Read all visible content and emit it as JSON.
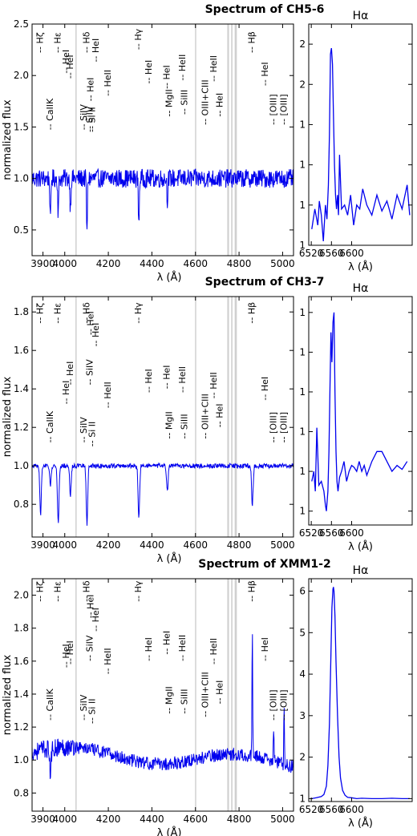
{
  "chart_data": [
    {
      "type": "line",
      "title": "Spectrum of CH5-6",
      "xlabel": "λ (Å)",
      "ylabel": "normalized flux",
      "xlim": [
        3850,
        5050
      ],
      "ylim": [
        0.25,
        2.5
      ],
      "xticks": [
        3900,
        4000,
        4200,
        4400,
        4600,
        4800,
        5000
      ],
      "yticks": [
        0.5,
        1.0,
        1.5,
        2.0,
        2.5
      ],
      "series": [
        {
          "name": "",
          "color": "#0000ee",
          "noise": 0.09,
          "emission": [],
          "absorption": [
            [
              3934,
              0.45
            ],
            [
              3970,
              0.35
            ],
            [
              4026,
              0.3
            ],
            [
              4102,
              0.55
            ],
            [
              4340,
              0.45
            ],
            [
              4471,
              0.2
            ]
          ]
        }
      ],
      "shaded_bands": [
        [
          4049,
          4052
        ],
        [
          4598,
          4602
        ],
        [
          4746,
          4754
        ],
        [
          4764,
          4770
        ],
        [
          4780,
          4790
        ]
      ],
      "lines": [
        {
          "x": 3889,
          "label": "-- Hζ",
          "y": 2.22
        },
        {
          "x": 3934,
          "label": "-- CaIIK",
          "y": 1.47
        },
        {
          "x": 3970,
          "label": "-- Hε",
          "y": 2.22
        },
        {
          "x": 4009,
          "label": "-- HeI",
          "y": 2.02
        },
        {
          "x": 4026,
          "label": "-- HeI",
          "y": 1.97
        },
        {
          "x": 4089,
          "label": "-- SiIV",
          "y": 1.47
        },
        {
          "x": 4102,
          "label": "-- Hδ",
          "y": 2.22
        },
        {
          "x": 4116,
          "label": "-- SiIV",
          "y": 1.45
        },
        {
          "x": 4121,
          "label": "-- HeI",
          "y": 1.75
        },
        {
          "x": 4128,
          "label": "-- Si II",
          "y": 1.45
        },
        {
          "x": 4144,
          "label": "-- HeI",
          "y": 2.13
        },
        {
          "x": 4200,
          "label": "-- HeII",
          "y": 1.8
        },
        {
          "x": 4340,
          "label": "-- Hγ",
          "y": 2.25
        },
        {
          "x": 4388,
          "label": "-- HeI",
          "y": 1.92
        },
        {
          "x": 4471,
          "label": "-- HeI",
          "y": 1.87
        },
        {
          "x": 4481,
          "label": "-- MgII",
          "y": 1.6
        },
        {
          "x": 4552,
          "label": "-- SiIII",
          "y": 1.62
        },
        {
          "x": 4542,
          "label": "-- HeII",
          "y": 1.95
        },
        {
          "x": 4647,
          "label": "-- OIII+CIII",
          "y": 1.52
        },
        {
          "x": 4686,
          "label": "-- HeII",
          "y": 1.94
        },
        {
          "x": 4713,
          "label": "-- HeI",
          "y": 1.6
        },
        {
          "x": 4861,
          "label": "-- Hβ",
          "y": 2.22
        },
        {
          "x": 4922,
          "label": "-- HeI",
          "y": 1.9
        },
        {
          "x": 4959,
          "label": "-- [OIII]",
          "y": 1.52
        },
        {
          "x": 5007,
          "label": "-- [OIII]",
          "y": 1.52
        }
      ],
      "inset": {
        "title": "Hα",
        "xlabel": "λ (Å)",
        "xlim": [
          6515,
          6720
        ],
        "ylim": [
          0.8,
          1.9
        ],
        "xticks": [
          6520,
          6560,
          6600
        ],
        "yticks": [
          0.8,
          1.0,
          1.2,
          1.4,
          1.6,
          1.8
        ],
        "x": [
          6521,
          6527,
          6533,
          6536,
          6540,
          6544,
          6548,
          6551,
          6554,
          6556,
          6558,
          6560,
          6562,
          6564,
          6566,
          6568,
          6570,
          6572,
          6574,
          6576,
          6580,
          6586,
          6592,
          6598,
          6604,
          6610,
          6616,
          6622,
          6630,
          6640,
          6650,
          6660,
          6670,
          6680,
          6690,
          6700,
          6710,
          6715
        ],
        "y": [
          0.88,
          0.98,
          0.9,
          1.02,
          0.95,
          0.82,
          1.0,
          0.93,
          1.1,
          1.35,
          1.75,
          1.78,
          1.7,
          1.45,
          1.2,
          1.05,
          0.98,
          1.05,
          0.95,
          1.25,
          0.98,
          1.0,
          0.95,
          1.05,
          0.9,
          1.0,
          0.98,
          1.08,
          1.0,
          0.95,
          1.05,
          0.97,
          1.02,
          0.93,
          1.05,
          0.98,
          1.1,
          0.95
        ]
      }
    },
    {
      "type": "line",
      "title": "Spectrum of CH3-7",
      "xlabel": "λ (Å)",
      "ylabel": "normalized flux",
      "xlim": [
        3850,
        5050
      ],
      "ylim": [
        0.63,
        1.88
      ],
      "xticks": [
        3900,
        4000,
        4200,
        4400,
        4600,
        4800,
        5000
      ],
      "yticks": [
        0.8,
        1.0,
        1.2,
        1.4,
        1.6,
        1.8
      ],
      "series": [
        {
          "name": "",
          "color": "#0000ee",
          "noise": 0.012,
          "emission": [],
          "absorption": [
            [
              3889,
              0.25
            ],
            [
              3934,
              0.1
            ],
            [
              3970,
              0.3
            ],
            [
              4026,
              0.15
            ],
            [
              4102,
              0.3
            ],
            [
              4340,
              0.27
            ],
            [
              4471,
              0.13
            ],
            [
              4861,
              0.2
            ]
          ]
        }
      ],
      "shaded_bands": [
        [
          4049,
          4052
        ],
        [
          4598,
          4602
        ],
        [
          4746,
          4754
        ],
        [
          4764,
          4770
        ],
        [
          4780,
          4790
        ]
      ],
      "lines": [
        {
          "x": 3889,
          "label": "-- Hζ",
          "y": 1.74
        },
        {
          "x": 3934,
          "label": "-- CaIIK",
          "y": 1.12
        },
        {
          "x": 3970,
          "label": "-- Hε",
          "y": 1.74
        },
        {
          "x": 4009,
          "label": "-- HeI",
          "y": 1.32
        },
        {
          "x": 4026,
          "label": "-- HeI",
          "y": 1.42
        },
        {
          "x": 4089,
          "label": "-- SiIV",
          "y": 1.12
        },
        {
          "x": 4102,
          "label": "-- Hδ",
          "y": 1.74
        },
        {
          "x": 4116,
          "label": "-- SiIV",
          "y": 1.42
        },
        {
          "x": 4121,
          "label": "-- HeI",
          "y": 1.68
        },
        {
          "x": 4128,
          "label": "-- Si II",
          "y": 1.1
        },
        {
          "x": 4144,
          "label": "-- HeI",
          "y": 1.62
        },
        {
          "x": 4200,
          "label": "-- HeII",
          "y": 1.3
        },
        {
          "x": 4340,
          "label": "-- Hγ",
          "y": 1.74
        },
        {
          "x": 4388,
          "label": "-- HeI",
          "y": 1.38
        },
        {
          "x": 4471,
          "label": "-- HeI",
          "y": 1.4
        },
        {
          "x": 4481,
          "label": "-- MgII",
          "y": 1.14
        },
        {
          "x": 4552,
          "label": "-- SiIII",
          "y": 1.14
        },
        {
          "x": 4542,
          "label": "-- HeII",
          "y": 1.38
        },
        {
          "x": 4647,
          "label": "-- OIII+CIII",
          "y": 1.14
        },
        {
          "x": 4686,
          "label": "-- HeII",
          "y": 1.35
        },
        {
          "x": 4713,
          "label": "-- HeI",
          "y": 1.2
        },
        {
          "x": 4861,
          "label": "-- Hβ",
          "y": 1.74
        },
        {
          "x": 4922,
          "label": "-- HeI",
          "y": 1.34
        },
        {
          "x": 4959,
          "label": "-- [OIII]",
          "y": 1.12
        },
        {
          "x": 5007,
          "label": "-- [OIII]",
          "y": 1.12
        }
      ],
      "inset": {
        "title": "Hα",
        "xlabel": "λ (Å)",
        "xlim": [
          6515,
          6720
        ],
        "ylim": [
          0.973,
          1.088
        ],
        "xticks": [
          6520,
          6560,
          6600
        ],
        "yticks": [
          0.98,
          1.0,
          1.02,
          1.04,
          1.06,
          1.08
        ],
        "x": [
          6521,
          6525,
          6528,
          6531,
          6535,
          6540,
          6545,
          6548,
          6550,
          6553,
          6555,
          6557,
          6559,
          6561,
          6563,
          6565,
          6567,
          6569,
          6571,
          6573,
          6576,
          6580,
          6585,
          6590,
          6595,
          6600,
          6605,
          6610,
          6615,
          6620,
          6625,
          6630,
          6640,
          6650,
          6660,
          6670,
          6680,
          6690,
          6700,
          6710
        ],
        "y": [
          0.995,
          1.0,
          0.99,
          1.022,
          0.993,
          0.995,
          0.99,
          0.983,
          0.98,
          0.99,
          1.01,
          1.04,
          1.07,
          1.055,
          1.075,
          1.08,
          1.04,
          1.01,
          0.995,
          0.99,
          0.997,
          1.0,
          1.005,
          0.995,
          1.0,
          1.003,
          1.002,
          1.0,
          1.005,
          1.0,
          1.003,
          0.998,
          1.005,
          1.01,
          1.01,
          1.005,
          1.0,
          1.003,
          1.001,
          1.005
        ]
      }
    },
    {
      "type": "line",
      "title": "Spectrum of XMM1-2",
      "xlabel": "λ (Å)",
      "ylabel": "normalized flux",
      "xlim": [
        3850,
        5050
      ],
      "ylim": [
        0.69,
        2.1
      ],
      "xticks": [
        3900,
        4000,
        4200,
        4400,
        4600,
        4800,
        5000
      ],
      "yticks": [
        0.8,
        1.0,
        1.2,
        1.4,
        1.6,
        1.8,
        2.0
      ],
      "series": [
        {
          "name": "",
          "color": "#0000ee",
          "noise": 0.04,
          "emission": [
            [
              4861,
              0.8
            ],
            [
              4959,
              0.2
            ],
            [
              5007,
              0.35
            ]
          ],
          "absorption": [
            [
              3934,
              0.15
            ]
          ]
        }
      ],
      "shaded_bands": [
        [
          4049,
          4052
        ],
        [
          4598,
          4602
        ],
        [
          4746,
          4754
        ],
        [
          4764,
          4770
        ],
        [
          4780,
          4790
        ]
      ],
      "lines": [
        {
          "x": 3889,
          "label": "-- Hζ",
          "y": 1.96
        },
        {
          "x": 3934,
          "label": "-- CaIIK",
          "y": 1.24
        },
        {
          "x": 3970,
          "label": "-- Hε",
          "y": 1.96
        },
        {
          "x": 4009,
          "label": "-- HeI",
          "y": 1.56
        },
        {
          "x": 4026,
          "label": "-- HeI",
          "y": 1.58
        },
        {
          "x": 4089,
          "label": "-- SiIV",
          "y": 1.24
        },
        {
          "x": 4102,
          "label": "-- Hδ",
          "y": 1.96
        },
        {
          "x": 4116,
          "label": "-- SiIV",
          "y": 1.6
        },
        {
          "x": 4121,
          "label": "-- HeI",
          "y": 1.86
        },
        {
          "x": 4128,
          "label": "-- Si II",
          "y": 1.22
        },
        {
          "x": 4144,
          "label": "-- HeI",
          "y": 1.78
        },
        {
          "x": 4200,
          "label": "-- HeII",
          "y": 1.52
        },
        {
          "x": 4340,
          "label": "-- Hγ",
          "y": 1.96
        },
        {
          "x": 4388,
          "label": "-- HeI",
          "y": 1.6
        },
        {
          "x": 4471,
          "label": "-- HeI",
          "y": 1.64
        },
        {
          "x": 4481,
          "label": "-- MgII",
          "y": 1.28
        },
        {
          "x": 4552,
          "label": "-- SiIII",
          "y": 1.28
        },
        {
          "x": 4542,
          "label": "-- HeII",
          "y": 1.6
        },
        {
          "x": 4647,
          "label": "-- OIII+CIII",
          "y": 1.26
        },
        {
          "x": 4686,
          "label": "-- HeII",
          "y": 1.58
        },
        {
          "x": 4713,
          "label": "-- HeI",
          "y": 1.34
        },
        {
          "x": 4861,
          "label": "-- Hβ",
          "y": 1.96
        },
        {
          "x": 4922,
          "label": "-- HeI",
          "y": 1.6
        },
        {
          "x": 4959,
          "label": "-- [OIII]",
          "y": 1.24
        },
        {
          "x": 5007,
          "label": "-- [OIII]",
          "y": 1.24
        }
      ],
      "inset": {
        "title": "Hα",
        "xlabel": "λ (Å)",
        "xlim": [
          6515,
          6720
        ],
        "ylim": [
          0.93,
          6.3
        ],
        "xticks": [
          6520,
          6560,
          6600
        ],
        "yticks": [
          1,
          2,
          3,
          4,
          5,
          6
        ],
        "x": [
          6521,
          6530,
          6540,
          6545,
          6550,
          6553,
          6556,
          6559,
          6561,
          6563,
          6564,
          6565,
          6567,
          6569,
          6572,
          6575,
          6578,
          6582,
          6587,
          6592,
          6600,
          6610,
          6620,
          6640,
          6660,
          6680,
          6700,
          6715
        ],
        "y": [
          1.0,
          1.02,
          1.05,
          1.1,
          1.3,
          1.8,
          2.8,
          4.5,
          5.6,
          6.05,
          6.1,
          6.0,
          5.4,
          4.3,
          3.0,
          2.0,
          1.5,
          1.2,
          1.08,
          1.03,
          1.02,
          1.0,
          1.01,
          1.0,
          1.0,
          1.01,
          1.0,
          1.0
        ]
      }
    }
  ]
}
